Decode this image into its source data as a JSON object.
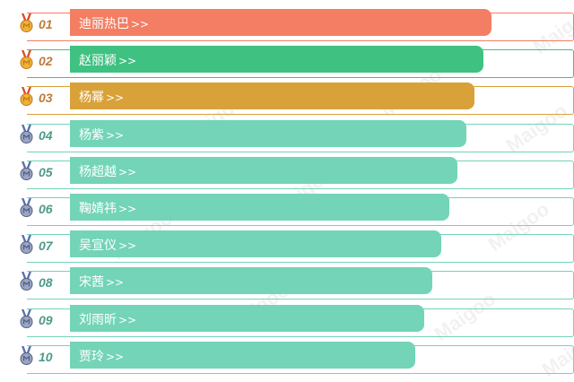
{
  "ranking": {
    "arrow_glyph": ">>",
    "items": [
      {
        "rank": "01",
        "name": "迪丽热巴",
        "color": "#f37e63",
        "level": 1.0,
        "medal": "gold-medal-icon"
      },
      {
        "rank": "02",
        "name": "赵丽颖",
        "color": "#3fc182",
        "level": 0.98,
        "medal": "gold-medal-icon"
      },
      {
        "rank": "03",
        "name": "杨幂",
        "color": "#d9a13a",
        "level": 0.96,
        "medal": "gold-medal-icon"
      },
      {
        "rank": "04",
        "name": "杨紫",
        "color": "#73d4b7",
        "level": 0.94,
        "medal": "silver-medal-icon"
      },
      {
        "rank": "05",
        "name": "杨超越",
        "color": "#73d4b7",
        "level": 0.92,
        "medal": "silver-medal-icon"
      },
      {
        "rank": "06",
        "name": "鞠婧祎",
        "color": "#73d4b7",
        "level": 0.9,
        "medal": "silver-medal-icon"
      },
      {
        "rank": "07",
        "name": "吴宣仪",
        "color": "#73d4b7",
        "level": 0.88,
        "medal": "silver-medal-icon"
      },
      {
        "rank": "08",
        "name": "宋茜",
        "color": "#73d4b7",
        "level": 0.86,
        "medal": "silver-medal-icon"
      },
      {
        "rank": "09",
        "name": "刘雨昕",
        "color": "#73d4b7",
        "level": 0.84,
        "medal": "silver-medal-icon"
      },
      {
        "rank": "10",
        "name": "贾玲",
        "color": "#73d4b7",
        "level": 0.82,
        "medal": "silver-medal-icon"
      }
    ]
  },
  "watermark_text": "Maigoo",
  "rank_color_top3": "#c07a3a",
  "rank_color_rest": "#4d9a8a"
}
